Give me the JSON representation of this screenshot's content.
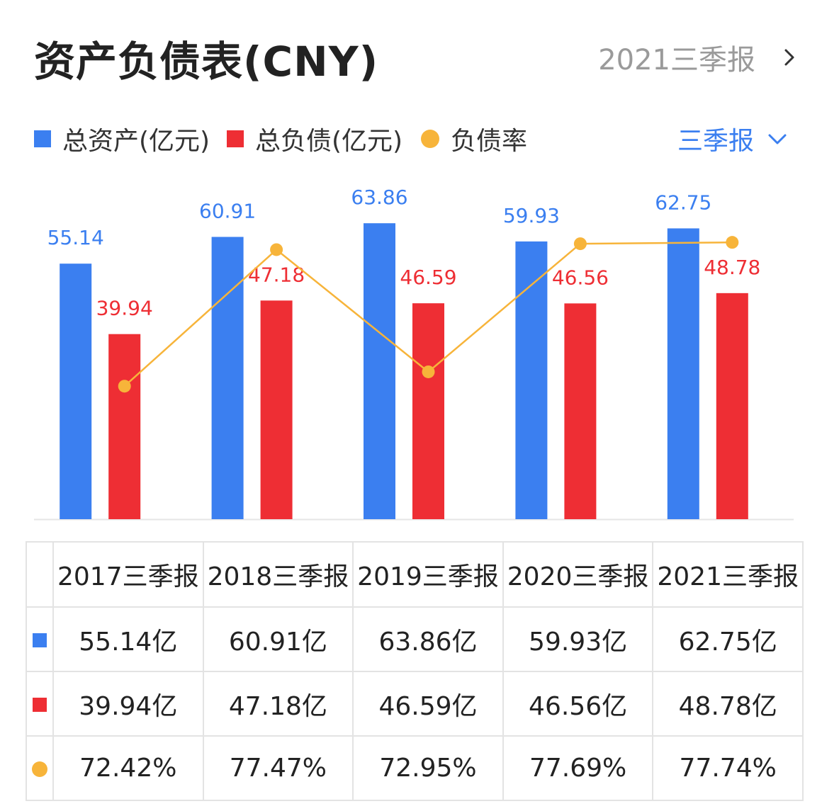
{
  "header": {
    "title": "资产负债表(CNY)",
    "report_label": "2021三季报"
  },
  "legend": {
    "items": [
      {
        "label": "总资产(亿元)",
        "color": "#3b7ff0",
        "shape": "square"
      },
      {
        "label": "总负债(亿元)",
        "color": "#ee2e34",
        "shape": "square"
      },
      {
        "label": "负债率",
        "color": "#f7b43a",
        "shape": "circle"
      }
    ],
    "period_label": "三季报",
    "period_color": "#3b7ff0"
  },
  "chart_data": {
    "type": "bar",
    "categories": [
      "2017三季报",
      "2018三季报",
      "2019三季报",
      "2020三季报",
      "2021三季报"
    ],
    "ylim": [
      0,
      70
    ],
    "line_ylim": [
      67.5,
      79.5
    ],
    "series": [
      {
        "name": "总资产(亿元)",
        "type": "bar",
        "color": "#3b7ff0",
        "values": [
          55.14,
          60.91,
          63.86,
          59.93,
          62.75
        ]
      },
      {
        "name": "总负债(亿元)",
        "type": "bar",
        "color": "#ee2e34",
        "values": [
          39.94,
          47.18,
          46.59,
          46.56,
          48.78
        ]
      },
      {
        "name": "负债率",
        "type": "line",
        "color": "#f7b43a",
        "values": [
          72.42,
          77.47,
          72.95,
          77.69,
          77.74
        ]
      }
    ]
  },
  "table": {
    "headers": [
      "2017三季报",
      "2018三季报",
      "2019三季报",
      "2020三季报",
      "2021三季报"
    ],
    "rows": [
      {
        "marker": "square",
        "color": "#3b7ff0",
        "cells": [
          "55.14亿",
          "60.91亿",
          "63.86亿",
          "59.93亿",
          "62.75亿"
        ]
      },
      {
        "marker": "square",
        "color": "#ee2e34",
        "cells": [
          "39.94亿",
          "47.18亿",
          "46.59亿",
          "46.56亿",
          "48.78亿"
        ]
      },
      {
        "marker": "circle",
        "color": "#f7b43a",
        "cells": [
          "72.42%",
          "77.47%",
          "72.95%",
          "77.69%",
          "77.74%"
        ]
      }
    ]
  }
}
